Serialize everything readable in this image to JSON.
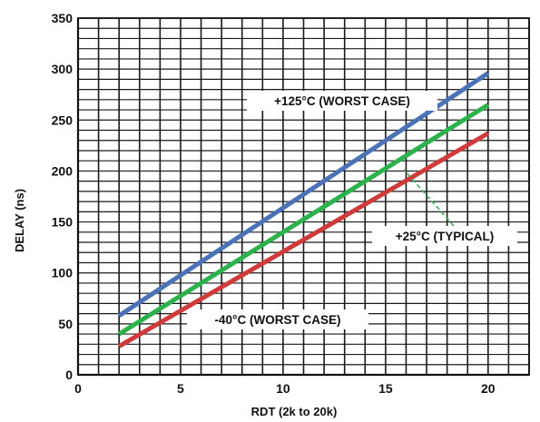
{
  "chart_data": {
    "type": "line",
    "xlabel": "RDT (2k to 20k)",
    "ylabel": "DELAY (ns)",
    "xlim": [
      0,
      22
    ],
    "ylim": [
      0,
      350
    ],
    "x_ticks": [
      0,
      5,
      10,
      15,
      20
    ],
    "y_ticks": [
      0,
      50,
      100,
      150,
      200,
      250,
      300,
      350
    ],
    "grid": true,
    "series": [
      {
        "name": "+125°C (WORST CASE)",
        "color": "#4a72b8",
        "x": [
          2,
          20
        ],
        "y": [
          58,
          296
        ]
      },
      {
        "name": "+25°C (TYPICAL)",
        "color": "#29b34a",
        "x": [
          2,
          20
        ],
        "y": [
          40,
          265
        ]
      },
      {
        "name": "-40°C (WORST CASE)",
        "color": "#d23a3a",
        "x": [
          2,
          20
        ],
        "y": [
          28,
          237
        ]
      }
    ],
    "annotations": [
      {
        "text": "+125°C (WORST CASE)",
        "series": 0
      },
      {
        "text": "+25°C (TYPICAL)",
        "series": 1
      },
      {
        "text": "-40°C (WORST CASE)",
        "series": 2
      }
    ]
  }
}
